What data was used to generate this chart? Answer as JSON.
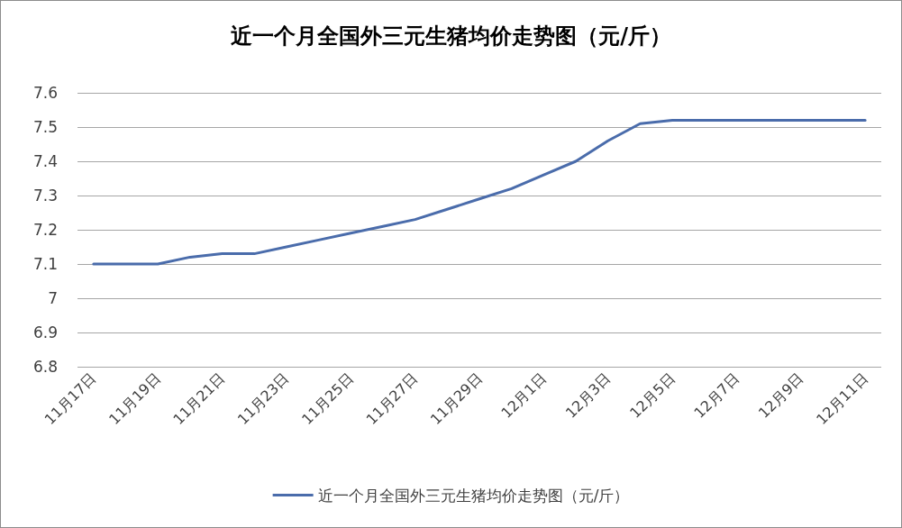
{
  "chart_data": {
    "type": "line",
    "title": "近一个月全国外三元生猪均价走势图（元/斤）",
    "categories": [
      "11月17日",
      null,
      "11月19日",
      null,
      "11月21日",
      null,
      "11月23日",
      null,
      "11月25日",
      null,
      "11月27日",
      null,
      "11月29日",
      null,
      "12月1日",
      null,
      "12月3日",
      null,
      "12月5日",
      null,
      "12月7日",
      null,
      "12月9日",
      null,
      "12月11日"
    ],
    "series": [
      {
        "name": "近一个月全国外三元生猪均价走势图（元/斤）",
        "color": "#4a6cab",
        "values": [
          7.1,
          7.1,
          7.1,
          7.12,
          7.13,
          7.13,
          7.15,
          7.17,
          7.19,
          7.21,
          7.23,
          7.26,
          7.29,
          7.32,
          7.36,
          7.4,
          7.46,
          7.51,
          7.52,
          7.52,
          7.52,
          7.52,
          7.52,
          7.52,
          7.52
        ]
      }
    ],
    "ylim": [
      6.8,
      7.6
    ],
    "yticks": [
      6.8,
      6.9,
      7,
      7.1,
      7.2,
      7.3,
      7.4,
      7.5,
      7.6
    ],
    "grid": "y",
    "legend": "bottom",
    "marker": "none"
  }
}
